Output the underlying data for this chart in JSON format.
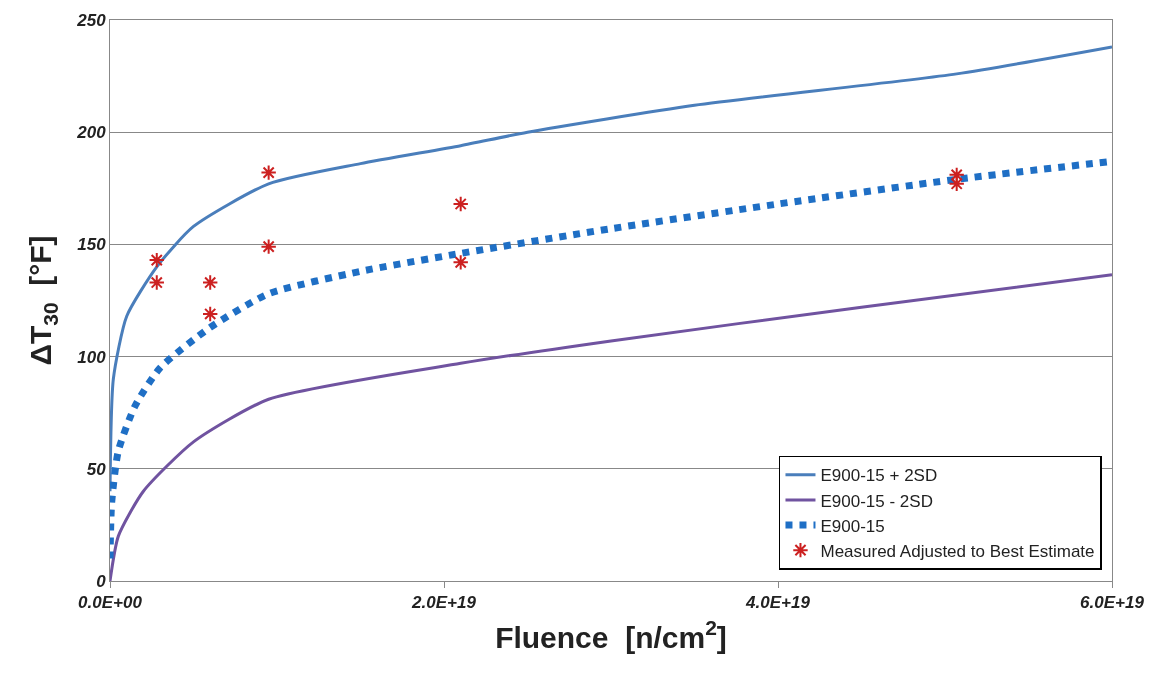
{
  "chart_data": {
    "type": "line",
    "xlabel": "Fluence  [n/cm$^{2}$]",
    "ylabel": "ΔT$_{30}$  [°F]",
    "xlim": [
      0,
      6e+19
    ],
    "xticks": [
      {
        "value": 0,
        "label": "0.0E+00"
      },
      {
        "value": 2e+19,
        "label": "2.0E+19"
      },
      {
        "value": 4e+19,
        "label": "4.0E+19"
      },
      {
        "value": 6e+19,
        "label": "6.0E+19"
      }
    ],
    "ylim": [
      0,
      250
    ],
    "yticks": [
      0,
      50,
      100,
      150,
      200,
      250
    ],
    "grid": "y",
    "legend": "bottom right",
    "series": [
      {
        "name": "E900-15 + 2SD",
        "color": "#4a7ebb",
        "line_style": "solid",
        "marker": "none",
        "x": [
          0,
          2e+17,
          1e+18,
          2.8e+18,
          5e+18,
          9.5e+18,
          1.5e+19,
          2.1e+19,
          2.5e+19,
          3.5e+19,
          5.07e+19,
          6e+19
        ],
        "values": [
          40,
          90,
          118,
          140,
          158,
          177,
          186,
          194,
          200,
          212,
          226,
          238
        ]
      },
      {
        "name": "E900-15 - 2SD",
        "color": "#7053a0",
        "line_style": "solid",
        "marker": "none",
        "x": [
          0,
          5e+17,
          2e+18,
          5e+18,
          9.5e+18,
          2.1e+19,
          3e+19,
          4.5e+19,
          6e+19
        ],
        "values": [
          0,
          20,
          40,
          62,
          81,
          97,
          107,
          122,
          136.5
        ]
      },
      {
        "name": "E900-15",
        "color": "#1f6fc5",
        "line_style": "dotted",
        "marker": "none",
        "x": [
          0,
          1e+17,
          5e+17,
          1.5e+18,
          3e+18,
          6e+18,
          9.5e+18,
          1.5e+19,
          2.1e+19,
          3e+19,
          4e+19,
          5.07e+19,
          6e+19
        ],
        "values": [
          10,
          35,
          58,
          78,
          95,
          113,
          128,
          138,
          146,
          157,
          168,
          179,
          187
        ]
      },
      {
        "name": "Measured Adjusted to Best Estimate",
        "type": "scatter",
        "color": "#cc2020",
        "marker": "cross",
        "x": [
          2.8e+18,
          2.8e+18,
          6e+18,
          6e+18,
          9.5e+18,
          9.5e+18,
          2.1e+19,
          2.1e+19,
          5.07e+19,
          5.07e+19
        ],
        "values": [
          143,
          133,
          133,
          119,
          182,
          149,
          168,
          142,
          181,
          177
        ]
      }
    ]
  }
}
